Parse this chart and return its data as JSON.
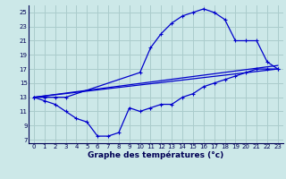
{
  "title": "Graphe des températures (°c)",
  "bg_color": "#cce8e8",
  "grid_color": "#aacccc",
  "line_color": "#0000cc",
  "xlim": [
    -0.5,
    23.5
  ],
  "ylim": [
    6.5,
    26
  ],
  "xticks": [
    0,
    1,
    2,
    3,
    4,
    5,
    6,
    7,
    8,
    9,
    10,
    11,
    12,
    13,
    14,
    15,
    16,
    17,
    18,
    19,
    20,
    21,
    22,
    23
  ],
  "yticks": [
    7,
    9,
    11,
    13,
    15,
    17,
    19,
    21,
    23,
    25
  ],
  "hours_max": [
    0,
    1,
    2,
    3,
    10,
    11,
    12,
    13,
    14,
    15,
    16,
    17,
    18,
    19,
    20,
    21,
    22,
    23
  ],
  "temps_max": [
    13,
    13,
    13,
    13,
    16.5,
    20,
    22,
    23.5,
    24.5,
    25,
    25.5,
    25,
    24,
    21,
    21,
    21,
    18,
    17
  ],
  "hours_min": [
    0,
    1,
    2,
    3,
    4,
    5,
    6,
    7,
    8,
    9,
    10,
    11,
    12,
    13,
    14,
    15,
    16,
    17,
    18,
    19,
    20,
    21,
    22,
    23
  ],
  "temps_min": [
    13,
    12.5,
    12,
    11,
    10,
    9.5,
    7.5,
    7.5,
    8,
    11.5,
    11,
    11.5,
    12,
    12,
    13,
    13.5,
    14.5,
    15,
    15.5,
    16,
    16.5,
    17,
    17,
    17
  ],
  "hours_mean1": [
    0,
    23
  ],
  "temps_mean1": [
    13,
    17
  ],
  "hours_mean2": [
    0,
    23
  ],
  "temps_mean2": [
    13,
    17.5
  ],
  "tick_fontsize": 5.0,
  "xlabel_fontsize": 6.5
}
